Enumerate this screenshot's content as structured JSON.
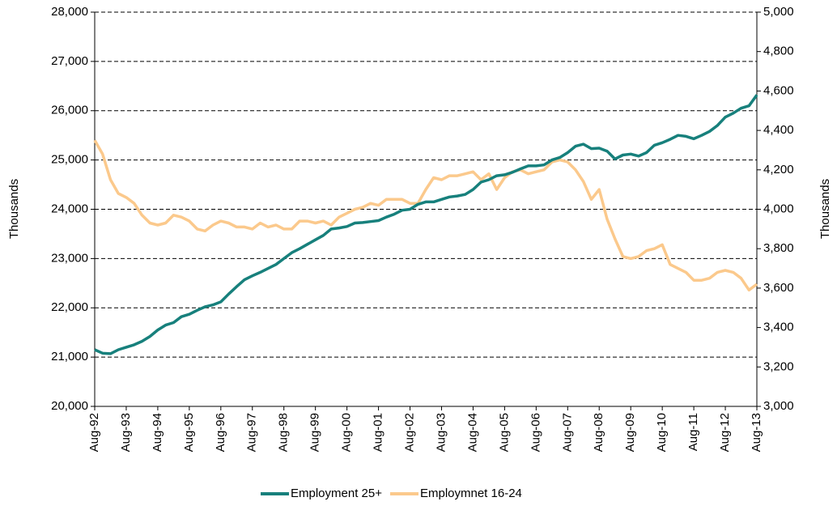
{
  "chart_data": {
    "type": "line",
    "categories": [
      "Aug-92",
      null,
      null,
      null,
      "Aug-93",
      null,
      null,
      null,
      "Aug-94",
      null,
      null,
      null,
      "Aug-95",
      null,
      null,
      null,
      "Aug-96",
      null,
      null,
      null,
      "Aug-97",
      null,
      null,
      null,
      "Aug-98",
      null,
      null,
      null,
      "Aug-99",
      null,
      null,
      null,
      "Aug-00",
      null,
      null,
      null,
      "Aug-01",
      null,
      null,
      null,
      "Aug-02",
      null,
      null,
      null,
      "Aug-03",
      null,
      null,
      null,
      "Aug-04",
      null,
      null,
      null,
      "Aug-05",
      null,
      null,
      null,
      "Aug-06",
      null,
      null,
      null,
      "Aug-07",
      null,
      null,
      null,
      "Aug-08",
      null,
      null,
      null,
      "Aug-09",
      null,
      null,
      null,
      "Aug-10",
      null,
      null,
      null,
      "Aug-11",
      null,
      null,
      null,
      "Aug-12",
      null,
      null,
      null,
      "Aug-13"
    ],
    "series": [
      {
        "name": "Employment 25+",
        "color": "#17807c",
        "values": [
          21150,
          21080,
          21070,
          21150,
          21200,
          21250,
          21320,
          21420,
          21550,
          21650,
          21700,
          21820,
          21870,
          21950,
          22020,
          22060,
          22120,
          22280,
          22430,
          22570,
          22650,
          22720,
          22800,
          22880,
          23000,
          23120,
          23200,
          23290,
          23380,
          23470,
          23600,
          23620,
          23650,
          23720,
          23730,
          23750,
          23770,
          23840,
          23900,
          23980,
          24000,
          24100,
          24150,
          24150,
          24200,
          24250,
          24270,
          24300,
          24400,
          24550,
          24600,
          24680,
          24700,
          24750,
          24820,
          24880,
          24880,
          24900,
          25000,
          25050,
          25150,
          25280,
          25320,
          25230,
          25240,
          25180,
          25020,
          25100,
          25120,
          25080,
          25150,
          25300,
          25350,
          25420,
          25500,
          25480,
          25430,
          25500,
          25580,
          25700,
          25870,
          25950,
          26050,
          26100,
          26320
        ]
      },
      {
        "name": "Employmnet 16-24",
        "color": "#fbc98c",
        "axis": "y2",
        "values": [
          4350,
          4280,
          4150,
          4080,
          4060,
          4030,
          3970,
          3930,
          3920,
          3930,
          3970,
          3960,
          3940,
          3900,
          3890,
          3920,
          3940,
          3930,
          3910,
          3910,
          3900,
          3930,
          3910,
          3920,
          3900,
          3900,
          3940,
          3940,
          3930,
          3940,
          3920,
          3960,
          3980,
          4000,
          4010,
          4030,
          4020,
          4050,
          4050,
          4050,
          4030,
          4030,
          4100,
          4160,
          4150,
          4170,
          4170,
          4180,
          4190,
          4150,
          4180,
          4100,
          4160,
          4190,
          4200,
          4180,
          4190,
          4200,
          4240,
          4250,
          4240,
          4200,
          4140,
          4050,
          4100,
          3950,
          3850,
          3760,
          3750,
          3760,
          3790,
          3800,
          3820,
          3720,
          3700,
          3680,
          3640,
          3640,
          3650,
          3680,
          3690,
          3680,
          3650,
          3590,
          3620
        ]
      }
    ],
    "y_label": "Thousands",
    "y2_label": "Thousands",
    "ylim": [
      20000,
      28000
    ],
    "yticks": [
      {
        "value": 20000,
        "label": "20,000"
      },
      {
        "value": 21000,
        "label": "21,000"
      },
      {
        "value": 22000,
        "label": "22,000"
      },
      {
        "value": 23000,
        "label": "23,000"
      },
      {
        "value": 24000,
        "label": "24,000"
      },
      {
        "value": 25000,
        "label": "25,000"
      },
      {
        "value": 26000,
        "label": "26,000"
      },
      {
        "value": 27000,
        "label": "27,000"
      },
      {
        "value": 28000,
        "label": "28,000"
      }
    ],
    "y2lim": [
      3000,
      5000
    ],
    "y2ticks": [
      {
        "value": 3000,
        "label": "3,000"
      },
      {
        "value": 3200,
        "label": "3,200"
      },
      {
        "value": 3400,
        "label": "3,400"
      },
      {
        "value": 3600,
        "label": "3,600"
      },
      {
        "value": 3800,
        "label": "3,800"
      },
      {
        "value": 4000,
        "label": "4,000"
      },
      {
        "value": 4200,
        "label": "4,200"
      },
      {
        "value": 4400,
        "label": "4,400"
      },
      {
        "value": 4600,
        "label": "4,600"
      },
      {
        "value": 4800,
        "label": "4,800"
      },
      {
        "value": 5000,
        "label": "5,000"
      }
    ],
    "grid": true,
    "legend": "bottom"
  }
}
